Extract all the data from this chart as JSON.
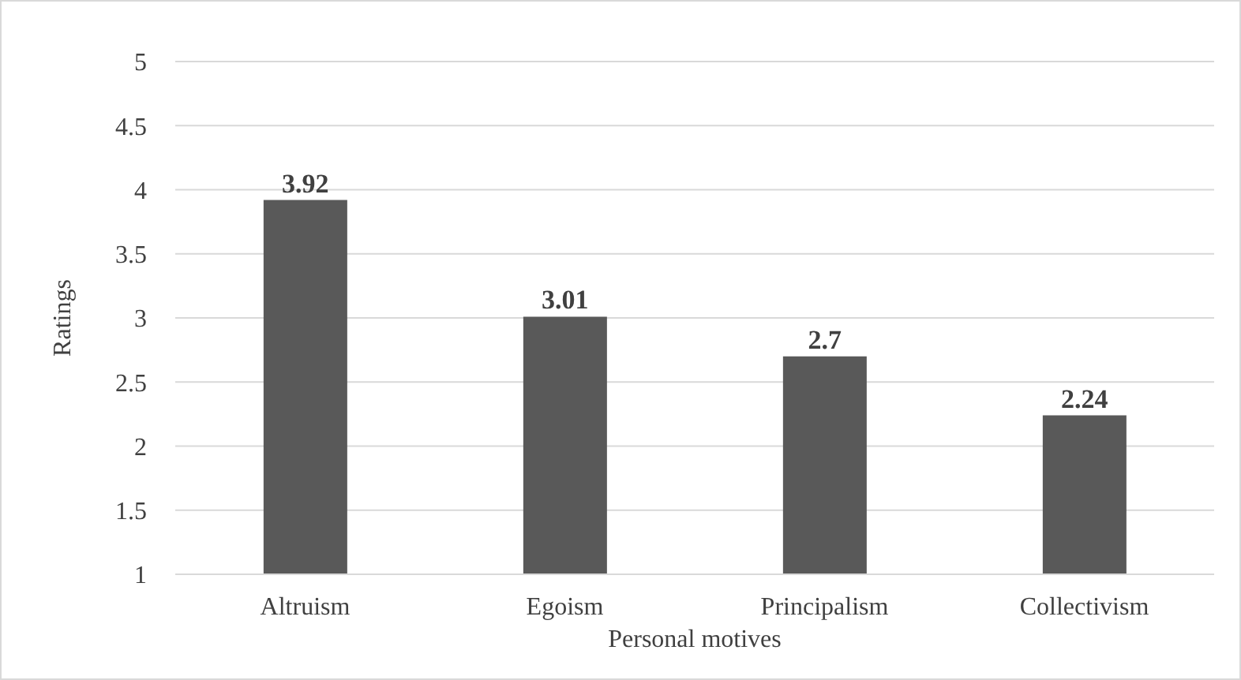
{
  "chart_data": {
    "type": "bar",
    "xlabel": "Personal motives",
    "ylabel": "Ratings",
    "categories": [
      "Altruism",
      "Egoism",
      "Principalism",
      "Collectivism"
    ],
    "values": [
      3.92,
      3.01,
      2.7,
      2.24
    ],
    "color": "#595959",
    "ylim": [
      1,
      5
    ],
    "yticks": [
      1,
      1.5,
      2,
      2.5,
      3,
      3.5,
      4,
      4.5,
      5
    ],
    "grid": "y",
    "data_labels": true
  }
}
